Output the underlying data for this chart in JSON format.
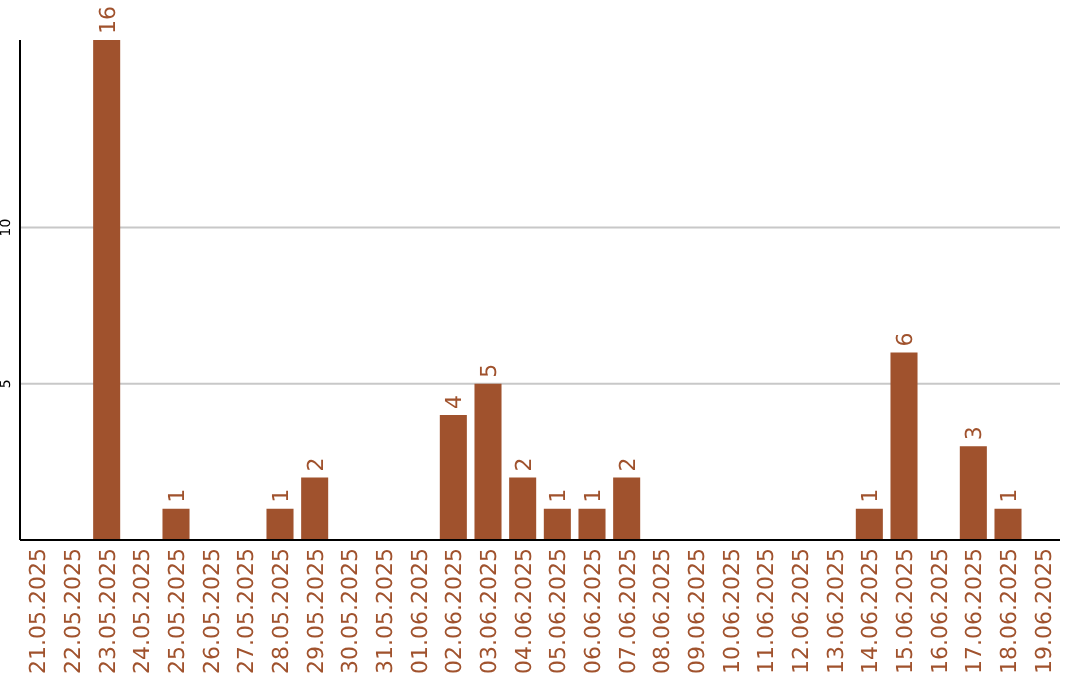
{
  "chart_data": {
    "type": "bar",
    "categories": [
      "21.05.2025",
      "22.05.2025",
      "23.05.2025",
      "24.05.2025",
      "25.05.2025",
      "26.05.2025",
      "27.05.2025",
      "28.05.2025",
      "29.05.2025",
      "30.05.2025",
      "31.05.2025",
      "01.06.2025",
      "02.06.2025",
      "03.06.2025",
      "04.06.2025",
      "05.06.2025",
      "06.06.2025",
      "07.06.2025",
      "08.06.2025",
      "09.06.2025",
      "10.06.2025",
      "11.06.2025",
      "12.06.2025",
      "13.06.2025",
      "14.06.2025",
      "15.06.2025",
      "16.06.2025",
      "17.06.2025",
      "18.06.2025",
      "19.06.2025"
    ],
    "values": [
      0,
      0,
      16,
      0,
      1,
      0,
      0,
      1,
      2,
      0,
      0,
      0,
      4,
      5,
      2,
      1,
      1,
      2,
      0,
      0,
      0,
      0,
      0,
      0,
      1,
      6,
      0,
      3,
      1,
      0
    ],
    "value_labels": [
      null,
      null,
      "16",
      null,
      "1",
      null,
      null,
      "1",
      "2",
      null,
      null,
      null,
      "4",
      "5",
      "2",
      "1",
      "1",
      "2",
      null,
      null,
      null,
      null,
      null,
      null,
      "1",
      "6",
      null,
      "3",
      "1",
      null
    ],
    "color": "#a0522d",
    "ylim": [
      0,
      16
    ],
    "yticks": [
      5,
      10
    ],
    "grid": "y"
  }
}
